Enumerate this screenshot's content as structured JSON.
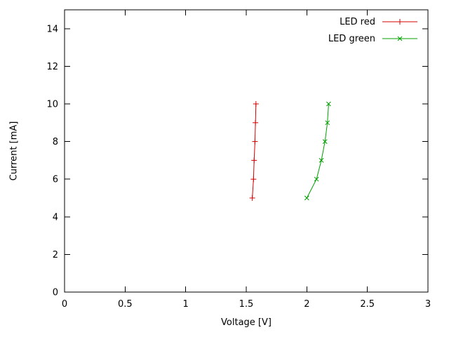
{
  "chart_data": {
    "type": "line",
    "title": "",
    "xlabel": "Voltage [V]",
    "ylabel": "Current [mA]",
    "xlim": [
      0,
      3
    ],
    "ylim": [
      0,
      15
    ],
    "xticks": [
      0,
      0.5,
      1,
      1.5,
      2,
      2.5,
      3
    ],
    "yticks": [
      0,
      2,
      4,
      6,
      8,
      10,
      12,
      14
    ],
    "grid": false,
    "legend_position": "top-right-inside",
    "axis_color": "#000000",
    "series": [
      {
        "name": "LED red",
        "color": "#d40000",
        "marker": "plus",
        "points": [
          [
            1.55,
            5
          ],
          [
            1.56,
            6
          ],
          [
            1.565,
            7
          ],
          [
            1.572,
            8
          ],
          [
            1.576,
            9
          ],
          [
            1.58,
            10
          ]
        ]
      },
      {
        "name": "LED green",
        "color": "#00a000",
        "marker": "cross",
        "points": [
          [
            2.0,
            5
          ],
          [
            2.08,
            6
          ],
          [
            2.12,
            7
          ],
          [
            2.15,
            8
          ],
          [
            2.17,
            9
          ],
          [
            2.18,
            10
          ]
        ]
      }
    ]
  }
}
